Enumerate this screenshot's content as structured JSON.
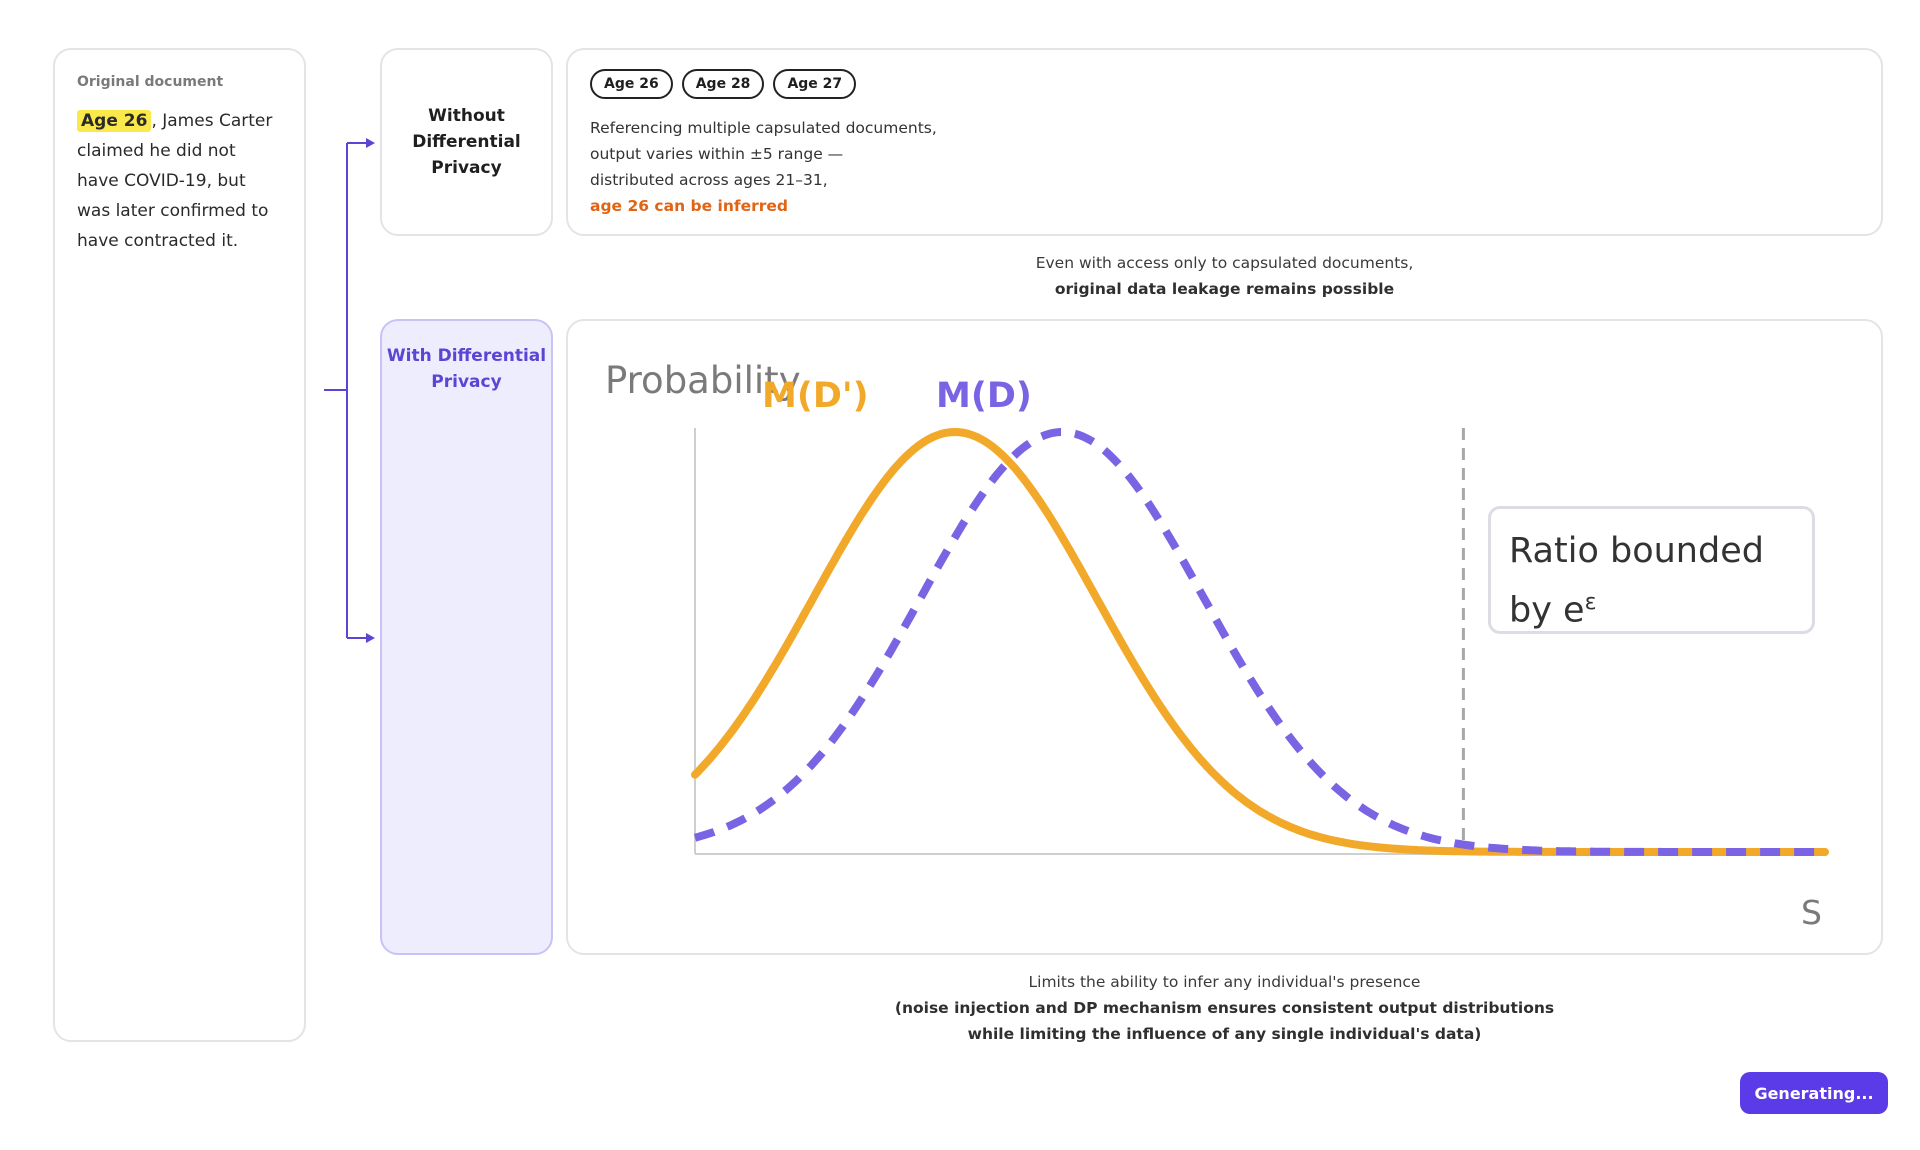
{
  "original": {
    "heading": "Original document",
    "highlight": "Age 26",
    "text": ", James Carter claimed he did not have COVID-19, but was later confirmed to have contracted it."
  },
  "without": {
    "label": "Without Differential Privacy",
    "chips": [
      "Age 26",
      "Age 28",
      "Age 27"
    ],
    "lines": [
      "Referencing multiple capsulated documents,",
      "output varies within ±5 range —",
      "distributed across ages 21–31,"
    ],
    "warning": "age 26 can be inferred",
    "warning_color": "#e06414"
  },
  "caption1": {
    "line1": "Even with access only to capsulated documents,",
    "line2": "original data leakage remains possible"
  },
  "with": {
    "label": "With Differential Privacy",
    "accent": "#5a45d4"
  },
  "chart_data": {
    "type": "line",
    "ylabel": "Probability",
    "xlabel": "S",
    "series": [
      {
        "name": "M(D')",
        "color": "#f2a92a",
        "style": "solid",
        "peak_x": 0.23,
        "spread": 0.125
      },
      {
        "name": "M(D)",
        "color": "#7b64e3",
        "style": "dashed",
        "peak_x": 0.325,
        "spread": 0.125
      }
    ],
    "threshold_x": 0.68,
    "annotation": {
      "text": "Ratio bounded by e",
      "sup": "ε"
    }
  },
  "caption2": {
    "line1": "Limits the ability to infer any individual's presence",
    "line2": "(noise injection and DP mechanism ensures consistent output distributions",
    "line3": "while limiting the influence of any single individual's data)"
  },
  "button": {
    "label": "Generating...",
    "color": "#5b3be8"
  }
}
